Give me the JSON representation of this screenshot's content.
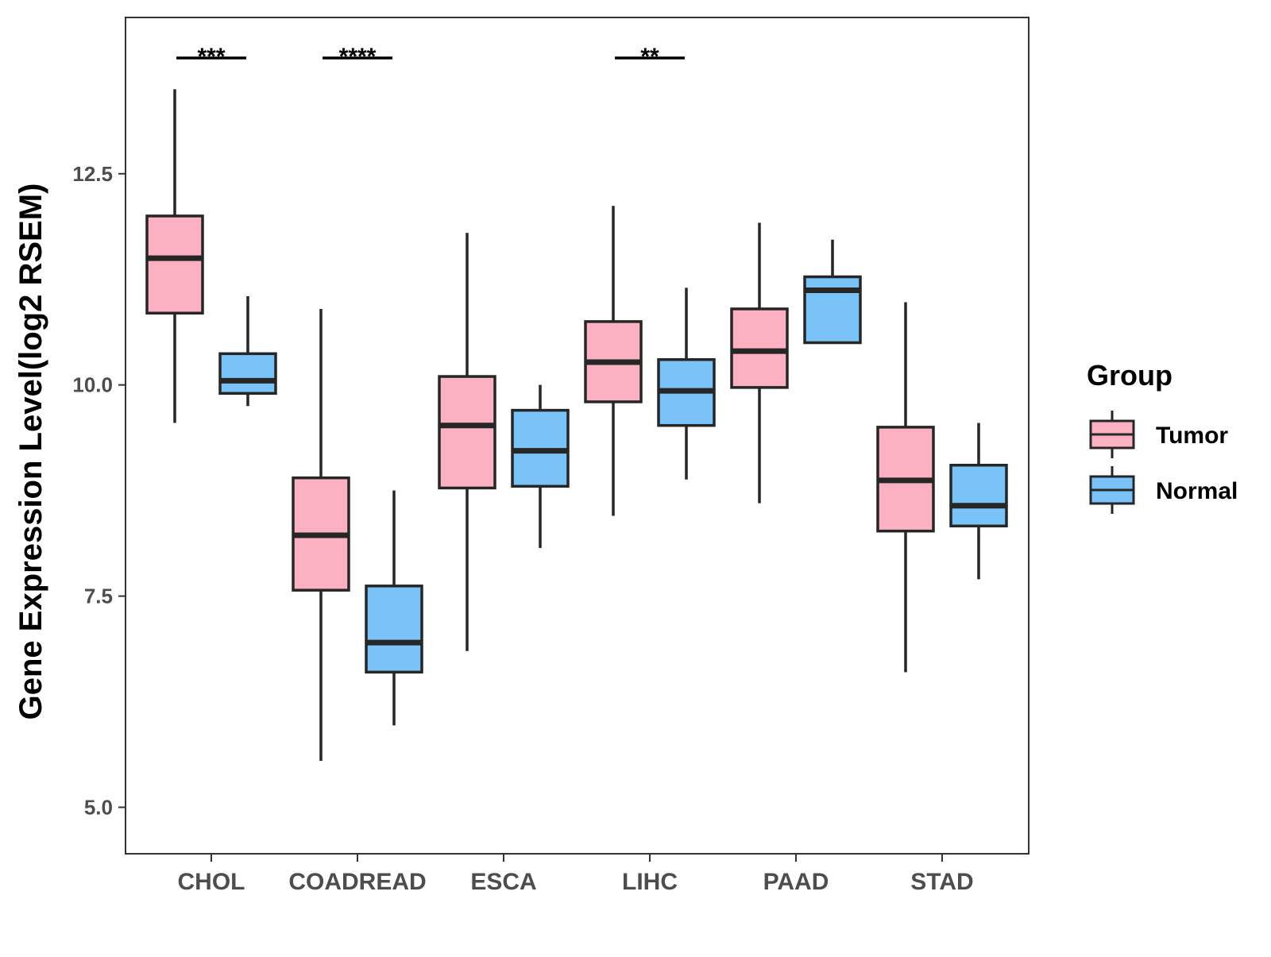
{
  "chart_data": {
    "type": "boxplot",
    "title": "",
    "xlabel": "",
    "ylabel": "Gene Expression Level(log2 RSEM)",
    "ylim": [
      4.45,
      14.35
    ],
    "yticks": [
      5.0,
      7.5,
      10.0,
      12.5
    ],
    "ytick_labels": [
      "5.0",
      "7.5",
      "10.0",
      "12.5"
    ],
    "categories": [
      "CHOL",
      "COADREAD",
      "ESCA",
      "LIHC",
      "PAAD",
      "STAD"
    ],
    "legend": {
      "title": "Group",
      "position": "right",
      "entries": [
        {
          "name": "Tumor",
          "color": "#fbb1c2"
        },
        {
          "name": "Normal",
          "color": "#79c3f9"
        }
      ]
    },
    "series": [
      {
        "name": "Tumor",
        "color": "#fbb1c2",
        "boxes": [
          {
            "category": "CHOL",
            "whisker_low": 9.55,
            "q1": 10.85,
            "median": 11.5,
            "q3": 12.0,
            "whisker_high": 13.5
          },
          {
            "category": "COADREAD",
            "whisker_low": 5.55,
            "q1": 7.57,
            "median": 8.22,
            "q3": 8.9,
            "whisker_high": 10.9
          },
          {
            "category": "ESCA",
            "whisker_low": 6.85,
            "q1": 8.78,
            "median": 9.52,
            "q3": 10.1,
            "whisker_high": 11.8
          },
          {
            "category": "LIHC",
            "whisker_low": 8.45,
            "q1": 9.8,
            "median": 10.27,
            "q3": 10.75,
            "whisker_high": 12.12
          },
          {
            "category": "PAAD",
            "whisker_low": 8.6,
            "q1": 9.97,
            "median": 10.4,
            "q3": 10.9,
            "whisker_high": 11.92
          },
          {
            "category": "STAD",
            "whisker_low": 6.6,
            "q1": 8.27,
            "median": 8.87,
            "q3": 9.5,
            "whisker_high": 10.98
          }
        ]
      },
      {
        "name": "Normal",
        "color": "#79c3f9",
        "boxes": [
          {
            "category": "CHOL",
            "whisker_low": 9.75,
            "q1": 9.9,
            "median": 10.05,
            "q3": 10.37,
            "whisker_high": 11.05
          },
          {
            "category": "COADREAD",
            "whisker_low": 5.97,
            "q1": 6.6,
            "median": 6.95,
            "q3": 7.62,
            "whisker_high": 8.75
          },
          {
            "category": "ESCA",
            "whisker_low": 8.07,
            "q1": 8.8,
            "median": 9.22,
            "q3": 9.7,
            "whisker_high": 10.0
          },
          {
            "category": "LIHC",
            "whisker_low": 8.88,
            "q1": 9.52,
            "median": 9.93,
            "q3": 10.3,
            "whisker_high": 11.15
          },
          {
            "category": "PAAD",
            "whisker_low": 10.5,
            "q1": 10.5,
            "median": 11.12,
            "q3": 11.28,
            "whisker_high": 11.72
          },
          {
            "category": "STAD",
            "whisker_low": 7.7,
            "q1": 8.33,
            "median": 8.57,
            "q3": 9.05,
            "whisker_high": 9.55
          }
        ]
      }
    ],
    "annotations": [
      {
        "category": "CHOL",
        "label": "***",
        "y": 13.87
      },
      {
        "category": "COADREAD",
        "label": "****",
        "y": 13.87
      },
      {
        "category": "LIHC",
        "label": "**",
        "y": 13.87
      }
    ]
  }
}
